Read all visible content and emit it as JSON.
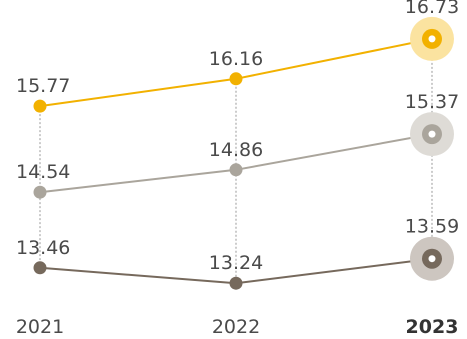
{
  "chart_data": {
    "type": "line",
    "title": "",
    "xlabel": "",
    "ylabel": "",
    "x": [
      "2021",
      "2022",
      "2023"
    ],
    "ylim": [
      13.0,
      17.0
    ],
    "grid": false,
    "legend": "none",
    "highlight_category": "2023",
    "series": [
      {
        "color": "#f2b100",
        "halo": "#fbe3a0",
        "values": [
          15.77,
          16.16,
          16.73
        ]
      },
      {
        "color": "#aaa59c",
        "halo": "#dedbd6",
        "values": [
          14.54,
          14.86,
          15.37
        ]
      },
      {
        "color": "#76695c",
        "halo": "#cdc6c0",
        "values": [
          13.46,
          13.24,
          13.59
        ]
      }
    ]
  }
}
